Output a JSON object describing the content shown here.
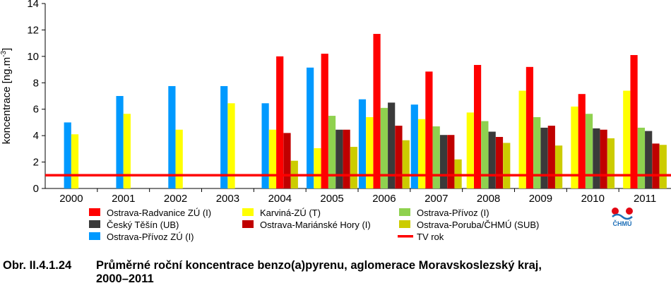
{
  "chart_data": {
    "type": "bar",
    "ylabel_main": "koncentrace [ng.m",
    "ylabel_sup": "-3",
    "ylabel_end": "]",
    "xlabel": "",
    "ylim": [
      0,
      14
    ],
    "yticks": [
      0,
      2,
      4,
      6,
      8,
      10,
      12,
      14
    ],
    "grid": false,
    "legend_position": "bottom",
    "categories": [
      "2000",
      "2001",
      "2002",
      "2003",
      "2004",
      "2005",
      "2006",
      "2007",
      "2008",
      "2009",
      "2010",
      "2011"
    ],
    "series": [
      {
        "name": "Ostrava-Radvanice ZÚ (I)",
        "color": "#ff0000",
        "values": [
          null,
          null,
          null,
          null,
          10.0,
          10.2,
          11.7,
          8.85,
          9.35,
          9.2,
          7.15,
          10.1
        ]
      },
      {
        "name": "Karviná-ZÚ (T)",
        "color": "#ffff00",
        "values": [
          4.1,
          5.65,
          4.45,
          6.45,
          4.45,
          3.05,
          5.4,
          5.25,
          5.75,
          7.4,
          6.2,
          7.4
        ]
      },
      {
        "name": "Ostrava-Přívoz (I)",
        "color": "#8fd14f",
        "values": [
          null,
          null,
          null,
          null,
          null,
          5.5,
          6.1,
          4.7,
          5.1,
          5.4,
          5.65,
          4.6
        ]
      },
      {
        "name": "Český Těšín (UB)",
        "color": "#3a3a3a",
        "values": [
          null,
          null,
          null,
          null,
          null,
          4.45,
          6.5,
          4.05,
          4.3,
          4.6,
          4.55,
          4.35
        ]
      },
      {
        "name": "Ostrava-Mariánské Hory (I)",
        "color": "#c00000",
        "values": [
          null,
          null,
          null,
          null,
          4.2,
          4.45,
          4.75,
          4.05,
          3.9,
          4.75,
          4.45,
          3.4
        ]
      },
      {
        "name": "Ostrava-Poruba/ČHMÚ (SUB)",
        "color": "#cccc00",
        "values": [
          null,
          null,
          null,
          null,
          2.1,
          3.15,
          3.65,
          2.2,
          3.45,
          3.25,
          3.8,
          3.3
        ]
      },
      {
        "name": "Ostrava-Přívoz ZÚ (I)",
        "color": "#0099ff",
        "values": [
          5.0,
          7.0,
          7.75,
          7.75,
          6.45,
          9.15,
          6.75,
          6.35,
          null,
          null,
          null,
          null
        ]
      }
    ],
    "reference_line": {
      "name": "TV rok",
      "value": 1.0,
      "color": "#ff0000"
    }
  },
  "legend": {
    "columns": [
      [
        "Ostrava-Radvanice ZÚ (I)",
        "Český Těšín (UB)",
        "Ostrava-Přívoz ZÚ (I)"
      ],
      [
        "Karviná-ZÚ (T)",
        "Ostrava-Mariánské Hory (I)"
      ],
      [
        "Ostrava-Přívoz (I)",
        "Ostrava-Poruba/ČHMÚ (SUB)",
        "TV rok"
      ]
    ]
  },
  "logo": {
    "text": "ČHMÚ",
    "colors": [
      "#e30613",
      "#1d6fb8"
    ]
  },
  "caption": {
    "number": "Obr. II.4.1.24",
    "line1": "Průměrné roční koncentrace benzo(a)pyrenu, aglomerace Moravskoslezský kraj,",
    "line2": "2000–2011"
  }
}
